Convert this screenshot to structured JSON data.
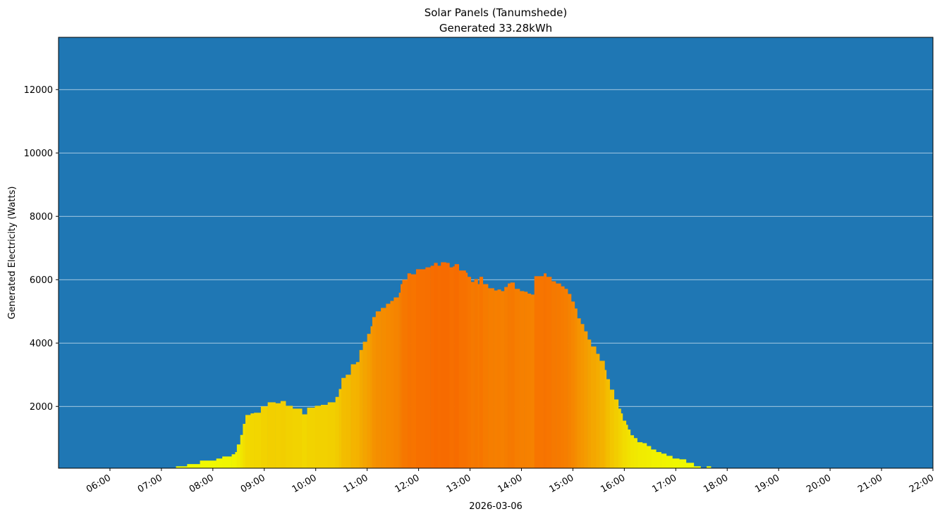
{
  "chart_data": {
    "type": "bar",
    "title": "Solar Panels (Tanumshede)",
    "subtitle": "Generated 33.28kWh",
    "xlabel": "2026-03-06",
    "ylabel": "Generated Electricity (Watts)",
    "xlim": [
      "05:00",
      "22:00"
    ],
    "ylim": [
      50,
      13650
    ],
    "grid": "horizontal",
    "background_color": "#1f77b4",
    "color_low": "#f0ff00",
    "color_high": "#f76b00",
    "x_ticks": [
      "06:00",
      "07:00",
      "08:00",
      "09:00",
      "10:00",
      "11:00",
      "12:00",
      "13:00",
      "14:00",
      "15:00",
      "16:00",
      "17:00",
      "18:00",
      "19:00",
      "20:00",
      "21:00",
      "22:00"
    ],
    "y_ticks": [
      2000,
      4000,
      6000,
      8000,
      10000,
      12000
    ],
    "times": [
      "06:33",
      "06:45",
      "07:05",
      "07:17",
      "07:30",
      "07:45",
      "08:04",
      "08:11",
      "08:22",
      "08:26",
      "08:28",
      "08:32",
      "08:35",
      "08:38",
      "08:44",
      "08:48",
      "08:56",
      "09:04",
      "09:13",
      "09:19",
      "09:25",
      "09:33",
      "09:44",
      "09:50",
      "09:59",
      "10:06",
      "10:14",
      "10:23",
      "10:27",
      "10:30",
      "10:35",
      "10:41",
      "10:47",
      "10:51",
      "10:55",
      "11:00",
      "11:04",
      "11:06",
      "11:10",
      "11:16",
      "11:22",
      "11:27",
      "11:31",
      "11:37",
      "11:39",
      "11:41",
      "11:47",
      "11:51",
      "11:57",
      "12:03",
      "12:08",
      "12:14",
      "12:18",
      "12:22",
      "12:26",
      "12:32",
      "12:36",
      "12:40",
      "12:42",
      "12:47",
      "12:52",
      "12:55",
      "12:57",
      "13:01",
      "13:05",
      "13:09",
      "13:11",
      "13:15",
      "13:21",
      "13:28",
      "13:32",
      "13:36",
      "13:40",
      "13:44",
      "13:47",
      "13:52",
      "13:58",
      "14:03",
      "14:07",
      "14:11",
      "14:15",
      "14:23",
      "14:26",
      "14:29",
      "14:35",
      "14:40",
      "14:46",
      "14:50",
      "14:54",
      "14:58",
      "15:02",
      "15:05",
      "15:09",
      "15:13",
      "15:17",
      "15:21",
      "15:27",
      "15:31",
      "15:37",
      "15:39",
      "15:43",
      "15:48",
      "15:53",
      "15:56",
      "15:58",
      "16:02",
      "16:04",
      "16:07",
      "16:11",
      "16:15",
      "16:21",
      "16:26",
      "16:31",
      "16:37",
      "16:43",
      "16:49",
      "16:56",
      "17:04",
      "17:12",
      "17:21",
      "17:29",
      "17:36",
      "17:41",
      "17:45"
    ],
    "values": [
      60,
      0,
      60,
      110,
      180,
      290,
      355,
      420,
      490,
      560,
      800,
      1100,
      1450,
      1730,
      1780,
      1800,
      2000,
      2130,
      2100,
      2170,
      2020,
      1930,
      1750,
      1960,
      2020,
      2050,
      2130,
      2300,
      2550,
      2900,
      3000,
      3330,
      3400,
      3780,
      4040,
      4290,
      4530,
      4820,
      5000,
      5110,
      5240,
      5330,
      5440,
      5590,
      5860,
      6000,
      6200,
      6170,
      6330,
      6330,
      6390,
      6440,
      6530,
      6440,
      6550,
      6530,
      6390,
      6420,
      6490,
      6290,
      6290,
      6220,
      6090,
      5930,
      6020,
      5860,
      6090,
      5860,
      5730,
      5660,
      5690,
      5640,
      5770,
      5880,
      5910,
      5710,
      5640,
      5620,
      5560,
      5530,
      6110,
      6110,
      6200,
      6090,
      5950,
      5880,
      5790,
      5710,
      5550,
      5310,
      5090,
      4780,
      4600,
      4370,
      4110,
      3890,
      3660,
      3440,
      3150,
      2860,
      2530,
      2220,
      1930,
      1780,
      1550,
      1420,
      1270,
      1090,
      1000,
      870,
      840,
      750,
      640,
      560,
      510,
      440,
      355,
      330,
      220,
      110,
      60,
      110,
      60,
      0
    ]
  }
}
